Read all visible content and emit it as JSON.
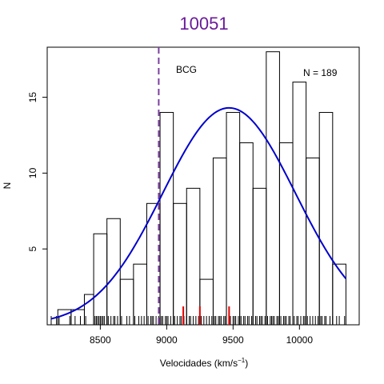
{
  "chart_data": {
    "type": "histogram",
    "title": "10051",
    "xlabel": "Velocidades  (km/s",
    "xlabel_exp": "−1",
    "xlabel_close": ")",
    "ylabel": "N",
    "xlim": [
      8100,
      10450
    ],
    "ylim": [
      0,
      18.3
    ],
    "xticks": [
      8500,
      9000,
      9500,
      10000
    ],
    "xtick_labels": [
      "8500",
      "9000",
      "9500",
      "10000"
    ],
    "yticks": [
      5,
      10,
      15
    ],
    "ytick_labels": [
      "5",
      "10",
      "15"
    ],
    "bins": [
      {
        "x0": 8180,
        "x1": 8280,
        "count": 1
      },
      {
        "x0": 8280,
        "x1": 8380,
        "count": 1
      },
      {
        "x0": 8380,
        "x1": 8450,
        "count": 2
      },
      {
        "x0": 8450,
        "x1": 8550,
        "count": 6
      },
      {
        "x0": 8550,
        "x1": 8650,
        "count": 7
      },
      {
        "x0": 8650,
        "x1": 8750,
        "count": 3
      },
      {
        "x0": 8750,
        "x1": 8850,
        "count": 4
      },
      {
        "x0": 8850,
        "x1": 8950,
        "count": 8
      },
      {
        "x0": 8950,
        "x1": 9050,
        "count": 14
      },
      {
        "x0": 9050,
        "x1": 9150,
        "count": 8
      },
      {
        "x0": 9150,
        "x1": 9250,
        "count": 9
      },
      {
        "x0": 9250,
        "x1": 9350,
        "count": 3
      },
      {
        "x0": 9350,
        "x1": 9450,
        "count": 11
      },
      {
        "x0": 9450,
        "x1": 9550,
        "count": 14
      },
      {
        "x0": 9550,
        "x1": 9650,
        "count": 12
      },
      {
        "x0": 9650,
        "x1": 9750,
        "count": 9
      },
      {
        "x0": 9750,
        "x1": 9850,
        "count": 18
      },
      {
        "x0": 9850,
        "x1": 9950,
        "count": 12
      },
      {
        "x0": 9950,
        "x1": 10050,
        "count": 16
      },
      {
        "x0": 10050,
        "x1": 10150,
        "count": 11
      },
      {
        "x0": 10150,
        "x1": 10250,
        "count": 14
      },
      {
        "x0": 10250,
        "x1": 10350,
        "count": 4
      }
    ],
    "gaussian_fit": {
      "mean": 9470,
      "sd": 500,
      "peak": 14.3,
      "color": "#0000cd"
    },
    "bcg": {
      "label": "BCG",
      "velocity": 8940,
      "color": "#7b3fa0"
    },
    "n_label": "N =  189",
    "highlight_velocities": [
      9125,
      9250,
      9470
    ],
    "highlight_color": "#e00000",
    "rug_velocities": [
      8130,
      8170,
      8190,
      8270,
      8310,
      8350,
      8390,
      8460,
      8470,
      8480,
      8490,
      8500,
      8510,
      8520,
      8530,
      8550,
      8560,
      8580,
      8600,
      8610,
      8630,
      8660,
      8700,
      8720,
      8760,
      8790,
      8810,
      8830,
      8860,
      8880,
      8890,
      8900,
      8920,
      8940,
      8960,
      8970,
      8990,
      9000,
      9010,
      9030,
      9050,
      9060,
      9080,
      9100,
      9110,
      9130,
      9150,
      9170,
      9180,
      9200,
      9220,
      9240,
      9260,
      9280,
      9300,
      9320,
      9340,
      9360,
      9370,
      9390,
      9400,
      9410,
      9430,
      9440,
      9450,
      9470,
      9480,
      9500,
      9510,
      9520,
      9540,
      9550,
      9560,
      9580,
      9590,
      9610,
      9620,
      9640,
      9650,
      9670,
      9680,
      9700,
      9710,
      9720,
      9740,
      9750,
      9760,
      9780,
      9790,
      9800,
      9810,
      9830,
      9840,
      9850,
      9860,
      9880,
      9890,
      9900,
      9920,
      9930,
      9950,
      9960,
      9980,
      9990,
      10010,
      10030,
      10040,
      10060,
      10080,
      10100,
      10120,
      10140,
      10160,
      10170,
      10190,
      10200,
      10230,
      10250,
      10280,
      10300,
      10340
    ],
    "colors": {
      "title": "#6a1b9a",
      "histogram": "#000000",
      "axes": "#000000"
    }
  }
}
